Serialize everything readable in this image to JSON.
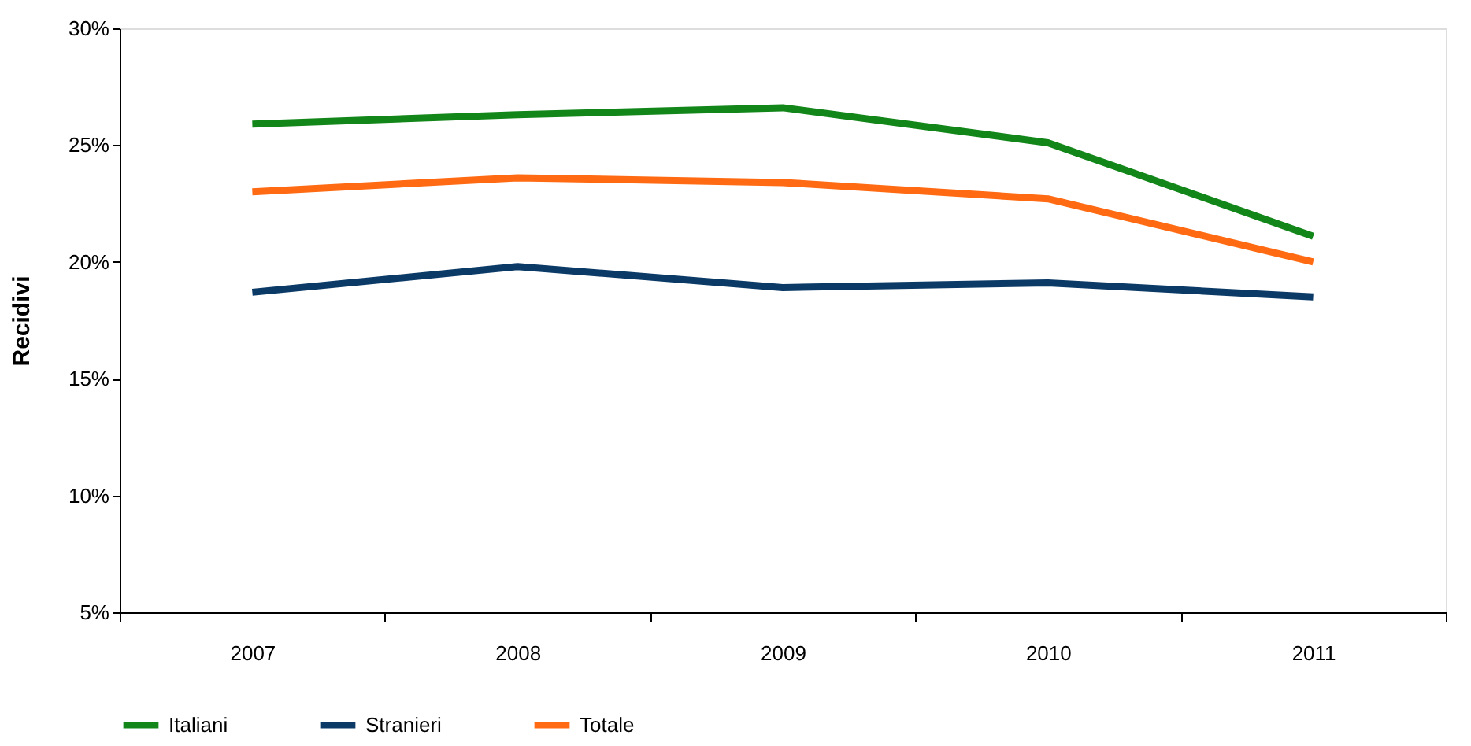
{
  "chart_data": {
    "type": "line",
    "ylabel": "Recidivi",
    "categories": [
      "2007",
      "2008",
      "2009",
      "2010",
      "2011"
    ],
    "series": [
      {
        "name": "Italiani",
        "color": "#13861a",
        "values": [
          25.9,
          26.3,
          26.6,
          25.1,
          21.1
        ]
      },
      {
        "name": "Stranieri",
        "color": "#0b3a66",
        "values": [
          18.7,
          19.8,
          18.9,
          19.1,
          18.5
        ]
      },
      {
        "name": "Totale",
        "color": "#ff6a13",
        "values": [
          23.0,
          23.6,
          23.4,
          22.7,
          20.0
        ]
      }
    ],
    "ylim": [
      5,
      30
    ],
    "yticks": [
      {
        "value": 5,
        "label": "5%"
      },
      {
        "value": 10,
        "label": "10%"
      },
      {
        "value": 15,
        "label": "15%"
      },
      {
        "value": 20,
        "label": "20%"
      },
      {
        "value": 25,
        "label": "25%"
      },
      {
        "value": 30,
        "label": "30%"
      }
    ],
    "grid": false,
    "legend": "bottom",
    "marker": "none",
    "line_style": "solid"
  }
}
